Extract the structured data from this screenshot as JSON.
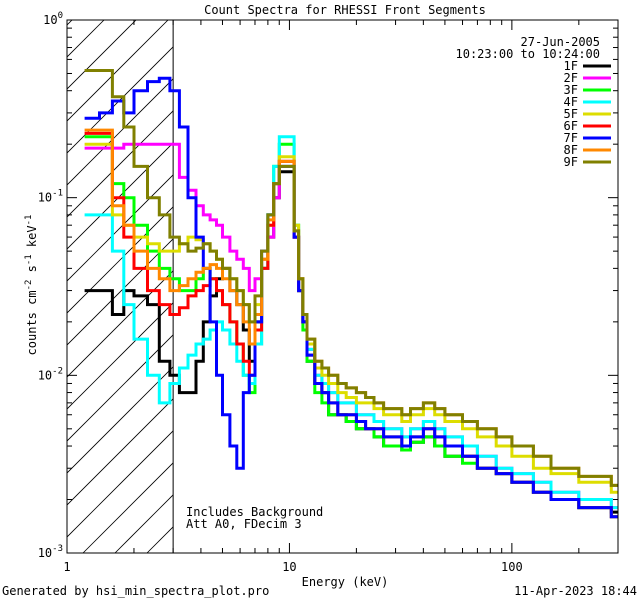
{
  "chart_data": {
    "type": "line",
    "title": "Count Spectra for RHESSI Front Segments",
    "xlabel": "Energy (keV)",
    "ylabel_main": "counts cm",
    "ylabel_exp1": "-2",
    "ylabel_mid": " s",
    "ylabel_exp2": "-1",
    "ylabel_end": " keV",
    "ylabel_exp3": "-1",
    "xscale": "log",
    "yscale": "log",
    "xlim": [
      1,
      300
    ],
    "ylim": [
      0.001,
      1
    ],
    "x_ticks": [
      {
        "value": 1,
        "label": "1"
      },
      {
        "value": 10,
        "label": "10"
      },
      {
        "value": 100,
        "label": "100"
      }
    ],
    "y_ticks": [
      {
        "value": 0.001,
        "base": "10",
        "exp": "-3"
      },
      {
        "value": 0.01,
        "base": "10",
        "exp": "-2"
      },
      {
        "value": 0.1,
        "base": "10",
        "exp": "-1"
      },
      {
        "value": 1,
        "base": "10",
        "exp": "0"
      }
    ],
    "date": "27-Jun-2005",
    "time_range": "10:23:00 to 10:24:00",
    "shaded_region_xmax": 3,
    "annotation_lines": [
      "Includes Background",
      "Att A0, FDecim 3"
    ],
    "series": [
      {
        "name": "1F",
        "color": "#000000",
        "values": [
          0.03,
          0.03,
          0.022,
          0.03,
          0.028,
          0.025,
          0.012,
          0.01,
          0.008,
          0.008,
          0.012,
          0.02,
          0.028,
          0.035,
          0.04,
          0.03,
          0.025,
          0.018,
          0.012,
          0.02,
          0.04,
          0.06,
          0.1,
          0.14,
          0.06,
          0.03,
          0.02,
          0.012,
          0.009,
          0.008,
          0.006,
          0.006,
          0.0055,
          0.005,
          0.005,
          0.0045,
          0.004,
          0.004,
          0.0038,
          0.0042,
          0.0045,
          0.004,
          0.0035,
          0.0035,
          0.003,
          0.0028,
          0.0025,
          0.0022,
          0.002,
          0.0018,
          0.0017
        ]
      },
      {
        "name": "2F",
        "color": "#ff00ff",
        "values": [
          0.19,
          0.19,
          0.19,
          0.2,
          0.2,
          0.2,
          0.2,
          0.2,
          0.13,
          0.11,
          0.09,
          0.08,
          0.075,
          0.07,
          0.06,
          0.05,
          0.045,
          0.04,
          0.03,
          0.035,
          0.045,
          0.06,
          0.1,
          0.16,
          0.06,
          0.03,
          0.02,
          0.014,
          0.01,
          0.009,
          0.008,
          0.007,
          0.007,
          0.006,
          0.006,
          0.0055,
          0.005,
          0.005,
          0.0045,
          0.005,
          0.0055,
          0.005,
          0.0045,
          0.004,
          0.0035,
          0.003,
          0.0028,
          0.0025,
          0.0022,
          0.002,
          0.0018
        ]
      },
      {
        "name": "3F",
        "color": "#00ff00",
        "values": [
          0.22,
          0.22,
          0.12,
          0.1,
          0.07,
          0.05,
          0.04,
          0.035,
          0.03,
          0.03,
          0.035,
          0.04,
          0.035,
          0.03,
          0.025,
          0.02,
          0.015,
          0.01,
          0.008,
          0.015,
          0.04,
          0.08,
          0.15,
          0.2,
          0.07,
          0.03,
          0.018,
          0.012,
          0.008,
          0.007,
          0.006,
          0.006,
          0.0055,
          0.005,
          0.005,
          0.0045,
          0.004,
          0.004,
          0.0038,
          0.0042,
          0.0045,
          0.004,
          0.0035,
          0.0032,
          0.003,
          0.0028,
          0.0025,
          0.0022,
          0.002,
          0.0018,
          0.0016
        ]
      },
      {
        "name": "4F",
        "color": "#00ffff",
        "values": [
          0.08,
          0.08,
          0.05,
          0.025,
          0.016,
          0.01,
          0.007,
          0.009,
          0.011,
          0.013,
          0.015,
          0.016,
          0.018,
          0.02,
          0.018,
          0.015,
          0.012,
          0.01,
          0.009,
          0.015,
          0.04,
          0.08,
          0.15,
          0.22,
          0.07,
          0.03,
          0.02,
          0.014,
          0.01,
          0.009,
          0.008,
          0.007,
          0.007,
          0.006,
          0.006,
          0.0055,
          0.005,
          0.005,
          0.0045,
          0.005,
          0.0055,
          0.005,
          0.0045,
          0.004,
          0.0035,
          0.003,
          0.0028,
          0.0025,
          0.0022,
          0.002,
          0.0018
        ]
      },
      {
        "name": "5F",
        "color": "#dddd00",
        "values": [
          0.2,
          0.2,
          0.08,
          0.07,
          0.06,
          0.055,
          0.05,
          0.05,
          0.055,
          0.06,
          0.058,
          0.055,
          0.05,
          0.045,
          0.04,
          0.035,
          0.03,
          0.025,
          0.02,
          0.025,
          0.045,
          0.07,
          0.12,
          0.17,
          0.07,
          0.035,
          0.022,
          0.015,
          0.011,
          0.01,
          0.009,
          0.008,
          0.0075,
          0.007,
          0.007,
          0.0065,
          0.006,
          0.006,
          0.0055,
          0.006,
          0.0065,
          0.006,
          0.0055,
          0.005,
          0.0045,
          0.004,
          0.0035,
          0.003,
          0.0028,
          0.0025,
          0.0022
        ]
      },
      {
        "name": "6F",
        "color": "#ff0000",
        "values": [
          0.23,
          0.23,
          0.1,
          0.06,
          0.04,
          0.03,
          0.025,
          0.022,
          0.024,
          0.028,
          0.03,
          0.032,
          0.035,
          0.03,
          0.025,
          0.02,
          0.015,
          0.012,
          0.01,
          0.018,
          0.04,
          0.07,
          0.12,
          0.16,
          0.06,
          0.03,
          0.02,
          0.013,
          0.009,
          0.008,
          0.007,
          0.006,
          0.006,
          0.0055,
          0.005,
          0.005,
          0.0045,
          0.0045,
          0.004,
          0.0045,
          0.005,
          0.0045,
          0.004,
          0.0035,
          0.003,
          0.0028,
          0.0025,
          0.0022,
          0.002,
          0.0018,
          0.0016
        ]
      },
      {
        "name": "7F",
        "color": "#0000ff",
        "values": [
          0.28,
          0.3,
          0.35,
          0.3,
          0.4,
          0.45,
          0.47,
          0.4,
          0.25,
          0.1,
          0.06,
          0.04,
          0.02,
          0.01,
          0.006,
          0.004,
          0.003,
          0.008,
          0.01,
          0.02,
          0.05,
          0.08,
          0.12,
          0.15,
          0.06,
          0.03,
          0.02,
          0.013,
          0.009,
          0.008,
          0.007,
          0.006,
          0.006,
          0.0055,
          0.005,
          0.005,
          0.0045,
          0.0045,
          0.004,
          0.0045,
          0.005,
          0.0045,
          0.004,
          0.0035,
          0.003,
          0.0028,
          0.0025,
          0.0022,
          0.002,
          0.0018,
          0.0016
        ]
      },
      {
        "name": "8F",
        "color": "#ff8800",
        "values": [
          0.24,
          0.24,
          0.09,
          0.07,
          0.05,
          0.04,
          0.035,
          0.03,
          0.032,
          0.035,
          0.038,
          0.04,
          0.042,
          0.04,
          0.035,
          0.03,
          0.025,
          0.02,
          0.015,
          0.022,
          0.045,
          0.075,
          0.12,
          0.16,
          0.065,
          0.035,
          0.022,
          0.016,
          0.012,
          0.011,
          0.01,
          0.009,
          0.0085,
          0.008,
          0.0075,
          0.007,
          0.0065,
          0.0065,
          0.006,
          0.0065,
          0.007,
          0.0065,
          0.006,
          0.0055,
          0.005,
          0.0045,
          0.004,
          0.0035,
          0.003,
          0.0027,
          0.0024
        ]
      },
      {
        "name": "9F",
        "color": "#808000",
        "values": [
          0.52,
          0.52,
          0.37,
          0.25,
          0.15,
          0.1,
          0.08,
          0.06,
          0.055,
          0.05,
          0.052,
          0.055,
          0.05,
          0.045,
          0.04,
          0.035,
          0.03,
          0.025,
          0.02,
          0.028,
          0.05,
          0.08,
          0.12,
          0.15,
          0.065,
          0.035,
          0.022,
          0.016,
          0.012,
          0.011,
          0.01,
          0.009,
          0.0085,
          0.008,
          0.0075,
          0.007,
          0.0065,
          0.0065,
          0.006,
          0.0065,
          0.007,
          0.0065,
          0.006,
          0.0055,
          0.005,
          0.0045,
          0.004,
          0.0035,
          0.003,
          0.0027,
          0.0024
        ]
      }
    ],
    "energy_bins": [
      1.2,
      1.4,
      1.6,
      1.8,
      2.0,
      2.3,
      2.6,
      2.9,
      3.2,
      3.5,
      3.8,
      4.1,
      4.4,
      4.7,
      5.0,
      5.4,
      5.8,
      6.2,
      6.6,
      7.0,
      7.5,
      8.0,
      8.5,
      9.0,
      10.5,
      11.0,
      11.5,
      12.0,
      13.0,
      14.0,
      15.0,
      16.5,
      18.0,
      20.0,
      22.0,
      24.0,
      26.5,
      29.0,
      32.0,
      35.0,
      40.0,
      45.0,
      50.0,
      60.0,
      70.0,
      85.0,
      100.0,
      125.0,
      150.0,
      200.0,
      280.0
    ]
  },
  "footer": {
    "generated_by": "Generated by hsi_min_spectra_plot.pro",
    "timestamp": "11-Apr-2023 18:44"
  }
}
